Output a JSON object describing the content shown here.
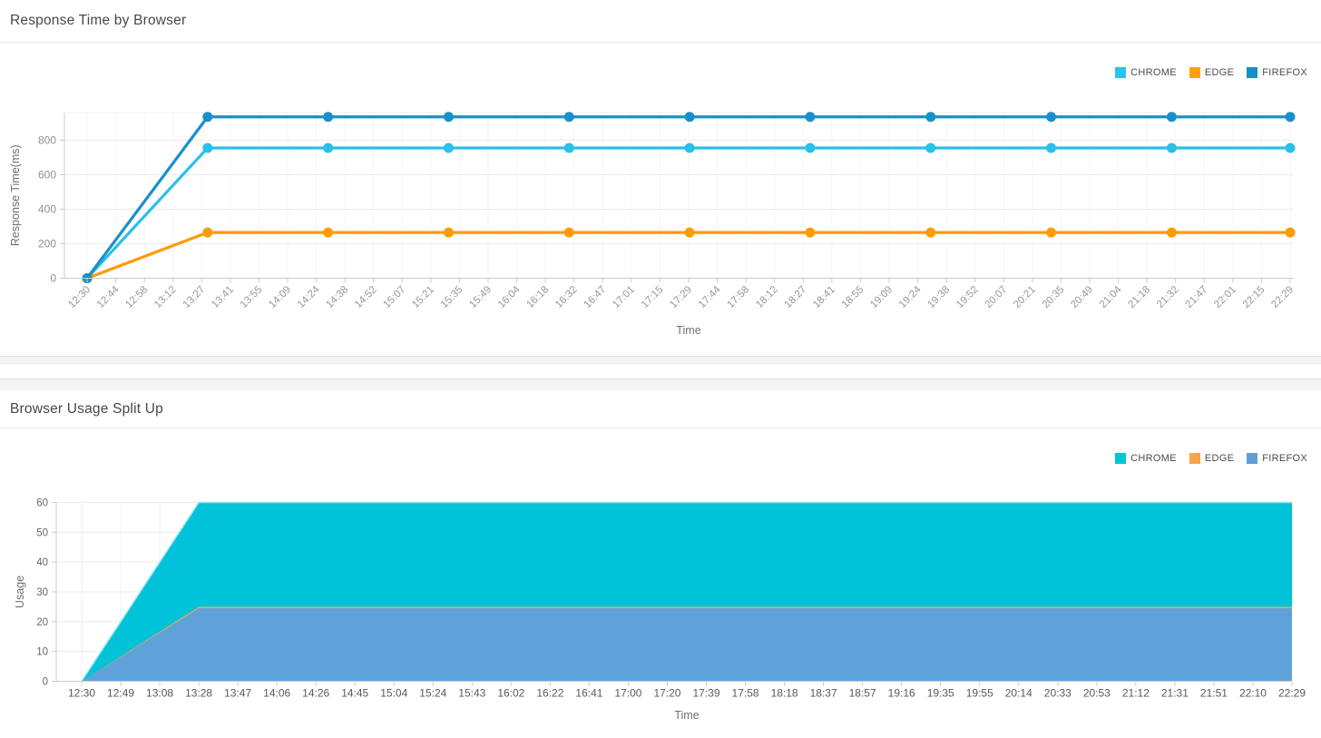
{
  "panels": [
    {
      "title": "Response Time by Browser",
      "legend": [
        {
          "label": "CHROME",
          "color": "#29c4ee"
        },
        {
          "label": "EDGE",
          "color": "#ffa10a"
        },
        {
          "label": "FIREFOX",
          "color": "#168fc4"
        }
      ]
    },
    {
      "title": "Browser Usage Split Up",
      "legend": [
        {
          "label": "CHROME",
          "color": "#00c4d8"
        },
        {
          "label": "EDGE",
          "color": "#f7a44b"
        },
        {
          "label": "FIREFOX",
          "color": "#5e9fd8"
        }
      ]
    }
  ],
  "chart_data": [
    {
      "type": "line",
      "title": "Response Time by Browser",
      "xlabel": "Time",
      "ylabel": "Response Time(ms)",
      "ylim": [
        0,
        960
      ],
      "yticks": [
        0,
        200,
        400,
        600,
        800
      ],
      "grid": true,
      "legend_position": "top-right",
      "x_tick_labels": [
        "12:30",
        "12:44",
        "12:58",
        "13:12",
        "13:27",
        "13:41",
        "13:55",
        "14:09",
        "14:24",
        "14:38",
        "14:52",
        "15:07",
        "15:21",
        "15:35",
        "15:49",
        "16:04",
        "16:18",
        "16:32",
        "16:47",
        "17:01",
        "17:15",
        "17:29",
        "17:44",
        "17:58",
        "18:12",
        "18:27",
        "18:41",
        "18:55",
        "19:09",
        "19:24",
        "19:38",
        "19:52",
        "20:07",
        "20:21",
        "20:35",
        "20:49",
        "21:04",
        "21:18",
        "21:32",
        "21:47",
        "22:01",
        "22:15",
        "22:29"
      ],
      "x_total_minutes": 599,
      "series": [
        {
          "name": "CHROME",
          "color": "#29c0ea",
          "x_times": [
            "12:30",
            "13:30",
            "14:30",
            "15:30",
            "16:30",
            "17:30",
            "18:30",
            "19:30",
            "20:30",
            "21:30",
            "22:29"
          ],
          "x_minutes": [
            0,
            60,
            120,
            180,
            240,
            300,
            360,
            420,
            480,
            540,
            599
          ],
          "values": [
            0,
            755,
            755,
            755,
            755,
            755,
            755,
            755,
            755,
            755,
            755
          ]
        },
        {
          "name": "EDGE",
          "color": "#ff9b05",
          "x_times": [
            "12:30",
            "13:30",
            "14:30",
            "15:30",
            "16:30",
            "17:30",
            "18:30",
            "19:30",
            "20:30",
            "21:30",
            "22:29"
          ],
          "x_minutes": [
            0,
            60,
            120,
            180,
            240,
            300,
            360,
            420,
            480,
            540,
            599
          ],
          "values": [
            0,
            265,
            265,
            265,
            265,
            265,
            265,
            265,
            265,
            265,
            265
          ]
        },
        {
          "name": "FIREFOX",
          "color": "#1b90c8",
          "x_times": [
            "12:30",
            "13:30",
            "14:30",
            "15:30",
            "16:30",
            "17:30",
            "18:30",
            "19:30",
            "20:30",
            "21:30",
            "22:29"
          ],
          "x_minutes": [
            0,
            60,
            120,
            180,
            240,
            300,
            360,
            420,
            480,
            540,
            599
          ],
          "values": [
            0,
            935,
            935,
            935,
            935,
            935,
            935,
            935,
            935,
            935,
            935
          ]
        }
      ]
    },
    {
      "type": "area",
      "title": "Browser Usage Split Up",
      "xlabel": "Time",
      "ylabel": "Usage",
      "ylim": [
        0,
        60
      ],
      "yticks": [
        0,
        10,
        20,
        30,
        40,
        50,
        60
      ],
      "grid": true,
      "legend_position": "top-right",
      "x_tick_labels": [
        "12:30",
        "12:49",
        "13:08",
        "13:28",
        "13:47",
        "14:06",
        "14:26",
        "14:45",
        "15:04",
        "15:24",
        "15:43",
        "16:02",
        "16:22",
        "16:41",
        "17:00",
        "17:20",
        "17:39",
        "17:58",
        "18:18",
        "18:37",
        "18:57",
        "19:16",
        "19:35",
        "19:55",
        "20:14",
        "20:33",
        "20:53",
        "21:12",
        "21:31",
        "21:51",
        "22:10",
        "22:29"
      ],
      "x_total_minutes": 599,
      "series": [
        {
          "name": "CHROME",
          "color": "#00c2d8",
          "x_times": [
            "12:30",
            "13:28",
            "22:29"
          ],
          "x_minutes": [
            0,
            58,
            599
          ],
          "values": [
            0,
            60,
            60
          ]
        },
        {
          "name": "EDGE",
          "color": "#f7a54c",
          "x_times": [
            "12:30",
            "13:28",
            "22:29"
          ],
          "x_minutes": [
            0,
            58,
            599
          ],
          "values": [
            0,
            24.5,
            24.5
          ]
        },
        {
          "name": "FIREFOX",
          "color": "#5fa2d9",
          "x_times": [
            "12:30",
            "13:28",
            "22:29"
          ],
          "x_minutes": [
            0,
            58,
            599
          ],
          "values": [
            0,
            24.5,
            24.5
          ]
        }
      ]
    }
  ]
}
